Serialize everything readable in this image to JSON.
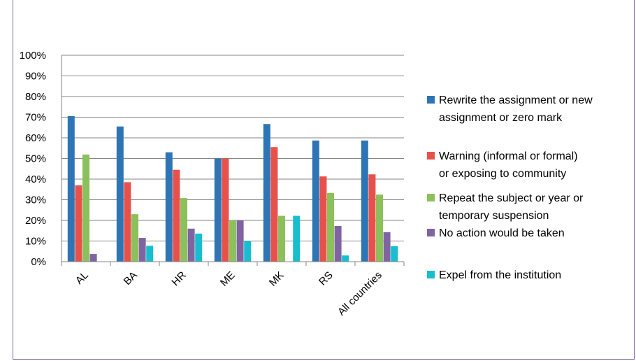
{
  "chart_data": {
    "type": "bar",
    "categories": [
      "AL",
      "BA",
      "HR",
      "ME",
      "MK",
      "RS",
      "All countries"
    ],
    "y_ticks": [
      "0%",
      "10%",
      "20%",
      "30%",
      "40%",
      "50%",
      "60%",
      "70%",
      "80%",
      "90%",
      "100%"
    ],
    "ylim": [
      0,
      100
    ],
    "grid": true,
    "legend_position": "right",
    "series": [
      {
        "name": "Rewrite the assignment or new assignment or zero mark",
        "legend_lines": [
          "Rewrite the assignment or new",
          "assignment or zero mark"
        ],
        "color": "#2e75b6",
        "values": [
          70.5,
          65.5,
          53,
          50,
          66.7,
          58.7,
          58.7
        ]
      },
      {
        "name": "Warning (informal or formal) or exposing to community",
        "legend_lines": [
          "Warning (informal or formal)",
          "or exposing to community"
        ],
        "color": "#e8514a",
        "values": [
          37,
          38.5,
          44.5,
          50,
          55.5,
          41.3,
          42.3
        ]
      },
      {
        "name": "Repeat the subject or year or temporary suspension",
        "legend_lines": [
          "Repeat the subject or year or",
          "temporary suspension"
        ],
        "color": "#8cc05a",
        "values": [
          51.9,
          23,
          30.8,
          20,
          22.2,
          33.3,
          32.5
        ]
      },
      {
        "name": "No action would be taken",
        "legend_lines": [
          "No action would be taken"
        ],
        "color": "#8064a2",
        "values": [
          3.7,
          11.5,
          16,
          20,
          0,
          17.3,
          14.3
        ]
      },
      {
        "name": "Expel from the institution",
        "legend_lines": [
          "Expel from the institution"
        ],
        "color": "#17becf",
        "values": [
          0,
          7.7,
          13.6,
          10,
          22.2,
          3,
          7.5
        ]
      }
    ]
  }
}
